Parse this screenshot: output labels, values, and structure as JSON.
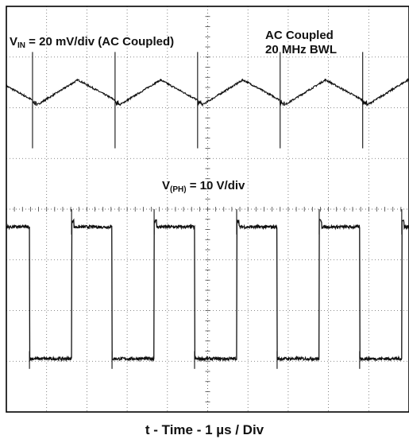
{
  "chart_data": {
    "type": "line",
    "title": "",
    "xlabel": "t - Time - 1 µs / Div",
    "ylabel": "",
    "x_units_per_div": "1 µs",
    "grid": true,
    "grid_divisions": {
      "x": 10,
      "y": 8
    },
    "grid_style": "dotted",
    "series": [
      {
        "name": "V_IN",
        "label_main": "V",
        "label_sub": "IN",
        "label_rest": " = 20 mV/div (AC Coupled)",
        "coupling": "AC Coupled",
        "bandwidth_limit": "20 MHz BWL",
        "waveform": "sawtooth ripple with switching spikes",
        "period_div": 2.05,
        "first_spike_div": 0.65,
        "baseline_div": 2.05,
        "peak_div": 2.55,
        "spike_high_div": 3.1,
        "spike_low_div": 1.2
      },
      {
        "name": "V_(PH)",
        "label_main": "V",
        "label_sub": "(PH)",
        "label_rest": " = 10 V/div",
        "waveform": "square wave (switch node)",
        "period_div": 2.05,
        "first_rise_div": 1.62,
        "high_level_div": -0.35,
        "low_level_div": -2.95,
        "duty_cycle": 0.49
      }
    ],
    "annotation": {
      "line1": "AC Coupled",
      "line2": "20 MHz BWL"
    }
  }
}
